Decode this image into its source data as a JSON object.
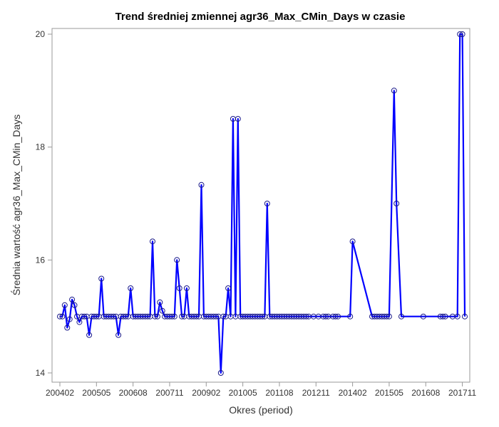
{
  "chart_data": {
    "type": "line",
    "title": "Trend średniej zmiennej agr36_Max_CMin_Days w czasie",
    "xlabel": "Okres (period)",
    "ylabel": "Średnia wartość agr36_Max_CMin_Days",
    "x_axis": "monthly periods (YYYYMM), first period 200402",
    "x_tick_labels": [
      "200402",
      "200505",
      "200608",
      "200711",
      "200902",
      "201005",
      "201108",
      "201211",
      "201402",
      "201505",
      "201608",
      "201711"
    ],
    "ylim": [
      14,
      20
    ],
    "y_ticks": [
      14,
      16,
      18,
      20
    ],
    "grid": false,
    "legend": "none",
    "line_color": "#0000FF",
    "marker": "open-circle",
    "series": [
      {
        "x": [
          "200402",
          "200403",
          "200404",
          "200405",
          "200406",
          "200407",
          "200408",
          "200409",
          "200410",
          "200411",
          "200412",
          "200501",
          "200502",
          "200503",
          "200504",
          "200505",
          "200506",
          "200507",
          "200508",
          "200509",
          "200510",
          "200511",
          "200512",
          "200601",
          "200602",
          "200603",
          "200604",
          "200605",
          "200606",
          "200607",
          "200608",
          "200609",
          "200610",
          "200611",
          "200612",
          "200701",
          "200702",
          "200703",
          "200704",
          "200705",
          "200706",
          "200707",
          "200708",
          "200709",
          "200710",
          "200711",
          "200712",
          "200801",
          "200802",
          "200803",
          "200804",
          "200805",
          "200806",
          "200807",
          "200808",
          "200809",
          "200810",
          "200811",
          "200812",
          "200901",
          "200902",
          "200903",
          "200904",
          "200905",
          "200906",
          "200907",
          "200908",
          "200909",
          "200910",
          "200911",
          "200912",
          "201001",
          "201002",
          "201003",
          "201004",
          "201005",
          "201006",
          "201007",
          "201008",
          "201009",
          "201010",
          "201011",
          "201012",
          "201101",
          "201102",
          "201103",
          "201104",
          "201105",
          "201106",
          "201107",
          "201108",
          "201109",
          "201110",
          "201111",
          "201112",
          "201201",
          "201202",
          "201203",
          "201204",
          "201205",
          "201206",
          "201207",
          "201208",
          "201210",
          "201212",
          "201302",
          "201303",
          "201304",
          "201306",
          "201307",
          "201308",
          "201401",
          "201402",
          "201410",
          "201411",
          "201412",
          "201501",
          "201502",
          "201503",
          "201504",
          "201505",
          "201507",
          "201508",
          "201510",
          "201607",
          "201702",
          "201703",
          "201704",
          "201707",
          "201709",
          "201710",
          "201711",
          "201712"
        ],
        "y": [
          15.0,
          15.0,
          15.2,
          14.8,
          14.95,
          15.3,
          15.2,
          15.0,
          14.9,
          15.0,
          15.0,
          15.0,
          14.67,
          15.0,
          15.0,
          15.0,
          15.0,
          15.67,
          15.0,
          15.0,
          15.0,
          15.0,
          15.0,
          15.0,
          14.67,
          15.0,
          15.0,
          15.0,
          15.0,
          15.5,
          15.0,
          15.0,
          15.0,
          15.0,
          15.0,
          15.0,
          15.0,
          15.0,
          16.33,
          15.0,
          15.0,
          15.25,
          15.1,
          15.0,
          15.0,
          15.0,
          15.0,
          15.0,
          16.0,
          15.5,
          15.0,
          15.0,
          15.5,
          15.0,
          15.0,
          15.0,
          15.0,
          15.0,
          17.33,
          15.0,
          15.0,
          15.0,
          15.0,
          15.0,
          15.0,
          15.0,
          14.0,
          15.0,
          15.0,
          15.5,
          15.0,
          18.5,
          15.0,
          18.5,
          15.0,
          15.0,
          15.0,
          15.0,
          15.0,
          15.0,
          15.0,
          15.0,
          15.0,
          15.0,
          15.0,
          17.0,
          15.0,
          15.0,
          15.0,
          15.0,
          15.0,
          15.0,
          15.0,
          15.0,
          15.0,
          15.0,
          15.0,
          15.0,
          15.0,
          15.0,
          15.0,
          15.0,
          15.0,
          15.0,
          15.0,
          15.0,
          15.0,
          15.0,
          15.0,
          15.0,
          15.0,
          15.0,
          16.33,
          15.0,
          15.0,
          15.0,
          15.0,
          15.0,
          15.0,
          15.0,
          15.0,
          19.0,
          17.0,
          15.0,
          15.0,
          15.0,
          15.0,
          15.0,
          15.0,
          15.0,
          20.0,
          20.0,
          15.0
        ]
      }
    ]
  }
}
